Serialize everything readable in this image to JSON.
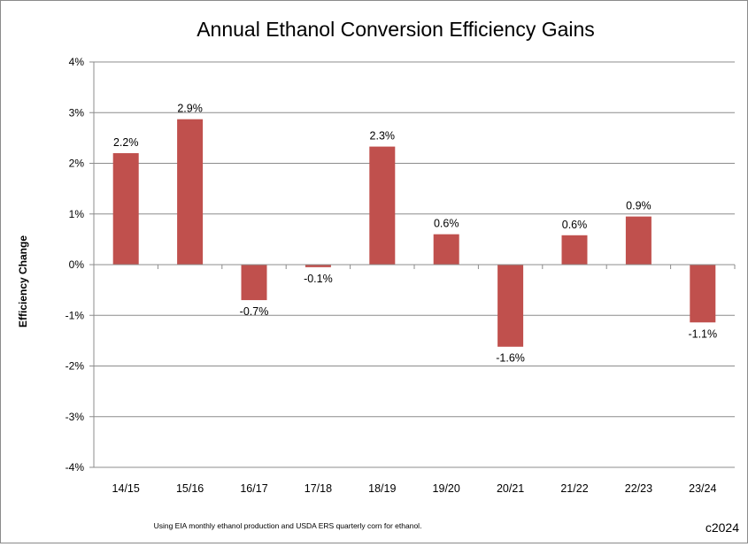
{
  "chart_data": {
    "type": "bar",
    "title": "Annual Ethanol Conversion Efficiency Gains",
    "ylabel": "Efficiency Change",
    "xlabel": "",
    "categories": [
      "14/15",
      "15/16",
      "16/17",
      "17/18",
      "18/19",
      "19/20",
      "20/21",
      "21/22",
      "22/23",
      "23/24"
    ],
    "values": [
      2.2,
      2.87,
      -0.7,
      -0.05,
      2.33,
      0.6,
      -1.62,
      0.58,
      0.95,
      -1.14
    ],
    "data_labels": [
      "2.2%",
      "2.9%",
      "-0.7%",
      "-0.1%",
      "2.3%",
      "0.6%",
      "-1.6%",
      "0.6%",
      "0.9%",
      "-1.1%"
    ],
    "ylim": [
      -4,
      4
    ],
    "y_ticks": [
      4,
      3,
      2,
      1,
      0,
      -1,
      -2,
      -3,
      -4
    ],
    "y_tick_labels": [
      "4%",
      "3%",
      "2%",
      "1%",
      "0%",
      "-1%",
      "-2%",
      "-3%",
      "-4%"
    ],
    "grid": true,
    "bar_color": "#C0504D",
    "footnote": "Using EIA monthly ethanol production and USDA ERS quarterly corn for ethanol.",
    "copyright": "c2024"
  }
}
